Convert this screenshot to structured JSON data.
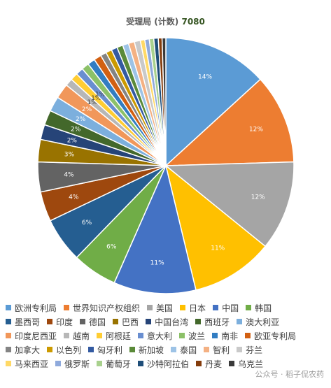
{
  "title_prefix": "受理局 (计数)",
  "title_total": "7080",
  "watermark": "公众号 · 稻子侃农药",
  "chart_data": {
    "type": "pie",
    "title": "受理局 (计数) 7080",
    "legend_position": "bottom",
    "categories": [
      "欧洲专利局",
      "世界知识产权组织",
      "美国",
      "日本",
      "中国",
      "韩国",
      "墨西哥",
      "印度",
      "德国",
      "巴西",
      "中国台湾",
      "西班牙",
      "澳大利亚",
      "印度尼西亚",
      "越南",
      "阿根廷",
      "意大利",
      "波兰",
      "南非",
      "欧亚专利局",
      "加拿大",
      "以色列",
      "匈牙利",
      "新加坡",
      "泰国",
      "智利",
      "芬兰",
      "马来西亚",
      "俄罗斯",
      "葡萄牙",
      "沙特阿拉伯",
      "丹麦",
      "乌克兰"
    ],
    "values": [
      14,
      12,
      12,
      11,
      11,
      6,
      6,
      4,
      4,
      3,
      2,
      2,
      2,
      2,
      1,
      1,
      1,
      1,
      1,
      1,
      0.8,
      0.8,
      0.8,
      0.8,
      0.8,
      0.8,
      0.8,
      0.6,
      0.6,
      0.6,
      0.6,
      0.5,
      0.5
    ],
    "data_labels": [
      "14%",
      "12%",
      "12%",
      "11%",
      "11%",
      "6%",
      "6%",
      "4%",
      "4%",
      "3%",
      "2%",
      "2%",
      "2%",
      "2%",
      "1%",
      "1%",
      "1%",
      "",
      "",
      "",
      "",
      "",
      "",
      "",
      "",
      "",
      "",
      "",
      "",
      "",
      "",
      "",
      ""
    ],
    "colors": [
      "#5B9BD5",
      "#ED7D31",
      "#A5A5A5",
      "#FFC000",
      "#4472C4",
      "#70AD47",
      "#255E91",
      "#9E480E",
      "#636363",
      "#997300",
      "#264478",
      "#43682B",
      "#7CAFDD",
      "#F1975A",
      "#B7B7B7",
      "#FFCD33",
      "#698ED0",
      "#8CC168",
      "#327DC2",
      "#D26012",
      "#848484",
      "#CC9A00",
      "#335AA1",
      "#5A8A39",
      "#9DC3E6",
      "#F4B183",
      "#C9C9C9",
      "#FFD966",
      "#8FAADC",
      "#A9D18E",
      "#1F4E79",
      "#843C0C",
      "#3A3A3A"
    ]
  }
}
